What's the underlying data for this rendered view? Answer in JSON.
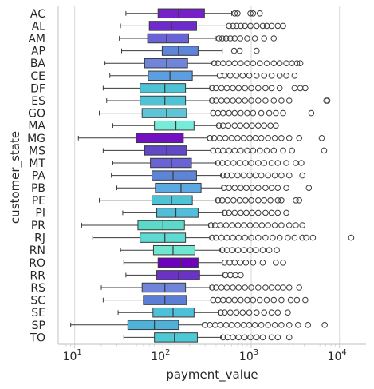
{
  "chart_data": {
    "type": "boxplot",
    "orientation": "horizontal",
    "title": "",
    "xlabel": "payment_value",
    "ylabel": "customer_state",
    "x_scale": "log",
    "xlim": [
      6.5,
      20000
    ],
    "x_ticks": [
      10,
      100,
      1000,
      10000
    ],
    "x_tick_labels": [
      "10^1",
      "10^2",
      "10^3",
      "10^4"
    ],
    "grid": "vertical",
    "categories": [
      "AC",
      "AL",
      "AM",
      "AP",
      "BA",
      "CE",
      "DF",
      "ES",
      "GO",
      "MA",
      "MG",
      "MS",
      "MT",
      "PA",
      "PB",
      "PE",
      "PI",
      "PR",
      "RJ",
      "RN",
      "RO",
      "RR",
      "RS",
      "SC",
      "SE",
      "SP",
      "TO"
    ],
    "boxes": [
      {
        "state": "AC",
        "whisker_low": 38,
        "q1": 88,
        "median": 150,
        "q3": 295,
        "whisker_high": 600,
        "color": "#7521C7",
        "outliers": [
          650,
          700,
          980,
          1050,
          1250
        ]
      },
      {
        "state": "AL",
        "whisker_low": 33,
        "q1": 70,
        "median": 125,
        "q3": 240,
        "whisker_high": 520,
        "color": "#6D2BCB",
        "outliers": [
          560,
          620,
          680,
          760,
          850,
          980,
          1150,
          1350,
          1500,
          1700,
          2000,
          2300
        ]
      },
      {
        "state": "AM",
        "whisker_low": 32,
        "q1": 67,
        "median": 110,
        "q3": 195,
        "whisker_high": 400,
        "color": "#6A63D6",
        "outliers": [
          430,
          470,
          520,
          580,
          650,
          750,
          900,
          1100,
          1400,
          1800
        ]
      },
      {
        "state": "AP",
        "whisker_low": 34,
        "q1": 98,
        "median": 150,
        "q3": 250,
        "whisker_high": 470,
        "color": "#5D85D9",
        "outliers": [
          640,
          740,
          1150
        ]
      },
      {
        "state": "BA",
        "whisker_low": 22,
        "q1": 62,
        "median": 110,
        "q3": 190,
        "whisker_high": 360,
        "color": "#6F85D9",
        "outliers": [
          380,
          420,
          480,
          560,
          650,
          760,
          900,
          1050,
          1250,
          1500,
          1800,
          2100,
          2500,
          2900,
          3300,
          3600
        ]
      },
      {
        "state": "CE",
        "whisker_low": 25,
        "q1": 68,
        "median": 120,
        "q3": 215,
        "whisker_high": 420,
        "color": "#5C9EE0",
        "outliers": [
          440,
          500,
          580,
          680,
          800,
          950,
          1150,
          1400,
          1700,
          2100,
          2500,
          3100
        ]
      },
      {
        "state": "DF",
        "whisker_low": 21,
        "q1": 55,
        "median": 105,
        "q3": 180,
        "whisker_high": 340,
        "color": "#4FC3D6",
        "outliers": [
          360,
          400,
          460,
          530,
          620,
          720,
          850,
          1000,
          1200,
          1450,
          1700,
          2100,
          3100,
          3600,
          4100
        ]
      },
      {
        "state": "ES",
        "whisker_low": 23,
        "q1": 55,
        "median": 105,
        "q3": 180,
        "whisker_high": 340,
        "color": "#4FC3D6",
        "outliers": [
          360,
          400,
          460,
          530,
          620,
          720,
          850,
          1000,
          1200,
          1450,
          1800,
          2200,
          2700,
          7100,
          7300
        ]
      },
      {
        "state": "GO",
        "whisker_low": 19,
        "q1": 58,
        "median": 110,
        "q3": 185,
        "whisker_high": 350,
        "color": "#5CC6D8",
        "outliers": [
          370,
          420,
          480,
          560,
          650,
          760,
          900,
          1050,
          1300,
          1600,
          1900,
          2300,
          4800
        ]
      },
      {
        "state": "MA",
        "whisker_low": 27,
        "q1": 80,
        "median": 140,
        "q3": 225,
        "whisker_high": 420,
        "color": "#77EBD9",
        "outliers": [
          430,
          480,
          550,
          650,
          750,
          880,
          1020,
          1200,
          1400,
          1650,
          1900
        ]
      },
      {
        "state": "MG",
        "whisker_low": 11,
        "q1": 50,
        "median": 100,
        "q3": 170,
        "whisker_high": 320,
        "color": "#7111C1",
        "outliers": [
          340,
          380,
          440,
          510,
          600,
          700,
          820,
          960,
          1120,
          1300,
          1550,
          1850,
          2200,
          2700,
          3500,
          6300
        ]
      },
      {
        "state": "MS",
        "whisker_low": 21,
        "q1": 62,
        "median": 110,
        "q3": 185,
        "whisker_high": 350,
        "color": "#6048C8",
        "outliers": [
          370,
          420,
          480,
          560,
          650,
          760,
          900,
          1050,
          1250,
          1500,
          1800,
          2300,
          2900,
          6700
        ]
      },
      {
        "state": "MT",
        "whisker_low": 27,
        "q1": 72,
        "median": 125,
        "q3": 210,
        "whisker_high": 400,
        "color": "#6A63D6",
        "outliers": [
          420,
          470,
          540,
          630,
          740,
          860,
          1000,
          1200,
          1400,
          1700,
          2000,
          2500,
          3200,
          3700
        ]
      },
      {
        "state": "PA",
        "whisker_low": 26,
        "q1": 75,
        "median": 130,
        "q3": 240,
        "whisker_high": 460,
        "color": "#5C85D8",
        "outliers": [
          480,
          530,
          600,
          700,
          820,
          960,
          1120,
          1300,
          1550,
          1850,
          2200,
          2700,
          3800
        ]
      },
      {
        "state": "PB",
        "whisker_low": 30,
        "q1": 82,
        "median": 160,
        "q3": 270,
        "whisker_high": 470,
        "color": "#5CA8E2",
        "outliers": [
          490,
          560,
          650,
          760,
          880,
          1020,
          1200,
          1450,
          1700,
          2000,
          2500,
          4500
        ]
      },
      {
        "state": "PE",
        "whisker_low": 19,
        "q1": 75,
        "median": 125,
        "q3": 215,
        "whisker_high": 400,
        "color": "#4FC3D6",
        "outliers": [
          420,
          470,
          540,
          630,
          740,
          860,
          1000,
          1200,
          1400,
          1650,
          2000,
          2200,
          3200,
          3500
        ]
      },
      {
        "state": "PI",
        "whisker_low": 35,
        "q1": 85,
        "median": 140,
        "q3": 250,
        "whisker_high": 480,
        "color": "#52BED9",
        "outliers": [
          500,
          560,
          650,
          760,
          880,
          1020,
          1200,
          1450,
          1700,
          2000,
          2500
        ]
      },
      {
        "state": "PR",
        "whisker_low": 12,
        "q1": 52,
        "median": 100,
        "q3": 175,
        "whisker_high": 330,
        "color": "#5ED9C9",
        "outliers": [
          350,
          390,
          450,
          520,
          610,
          710,
          830,
          970,
          1130,
          1320,
          1550,
          1850,
          2200,
          2700,
          3200,
          3800
        ]
      },
      {
        "state": "RJ",
        "whisker_low": 16,
        "q1": 55,
        "median": 105,
        "q3": 180,
        "whisker_high": 340,
        "color": "#5ED9D3",
        "outliers": [
          360,
          400,
          460,
          530,
          620,
          720,
          850,
          1000,
          1200,
          1450,
          1750,
          2100,
          2600,
          3100,
          3800,
          4200,
          5000,
          13600
        ]
      },
      {
        "state": "RN",
        "whisker_low": 33,
        "q1": 78,
        "median": 130,
        "q3": 230,
        "whisker_high": 450,
        "color": "#6FE6CF",
        "outliers": [
          470,
          530,
          610,
          710,
          830,
          970,
          1130,
          1350,
          1600,
          1950
        ]
      },
      {
        "state": "RO",
        "whisker_low": 36,
        "q1": 88,
        "median": 160,
        "q3": 250,
        "whisker_high": 470,
        "color": "#7000C0",
        "outliers": [
          500,
          570,
          650,
          750,
          870,
          1050,
          1350,
          1900,
          2300
        ]
      },
      {
        "state": "RR",
        "whisker_low": 38,
        "q1": 85,
        "median": 150,
        "q3": 260,
        "whisker_high": 480,
        "color": "#6A33C6",
        "outliers": [
          510,
          580,
          660,
          760
        ]
      },
      {
        "state": "RS",
        "whisker_low": 20,
        "q1": 58,
        "median": 105,
        "q3": 180,
        "whisker_high": 340,
        "color": "#6F85D9",
        "outliers": [
          360,
          400,
          460,
          530,
          620,
          720,
          850,
          1000,
          1200,
          1450,
          1700,
          2000,
          2300,
          2700,
          3500
        ]
      },
      {
        "state": "SC",
        "whisker_low": 21,
        "q1": 60,
        "median": 105,
        "q3": 185,
        "whisker_high": 350,
        "color": "#5A7DD6",
        "outliers": [
          370,
          420,
          480,
          560,
          650,
          760,
          900,
          1050,
          1250,
          1500,
          1800,
          2200,
          2800,
          3300,
          4100
        ]
      },
      {
        "state": "SE",
        "whisker_low": 31,
        "q1": 77,
        "median": 130,
        "q3": 225,
        "whisker_high": 430,
        "color": "#4FC0DA",
        "outliers": [
          450,
          500,
          580,
          680,
          800,
          950,
          1150,
          1400,
          1700,
          2000,
          2600
        ]
      },
      {
        "state": "SP",
        "whisker_low": 9,
        "q1": 40,
        "median": 80,
        "q3": 150,
        "whisker_high": 280,
        "color": "#4FB0D8",
        "outliers": [
          300,
          340,
          390,
          450,
          520,
          600,
          700,
          820,
          950,
          1100,
          1300,
          1550,
          1850,
          2200,
          2700,
          3400,
          4400,
          6800
        ]
      },
      {
        "state": "TO",
        "whisker_low": 36,
        "q1": 80,
        "median": 135,
        "q3": 245,
        "whisker_high": 460,
        "color": "#4FC8D6",
        "outliers": [
          480,
          540,
          620,
          720,
          840,
          980,
          1150,
          1350,
          1700,
          2000,
          2700
        ]
      }
    ]
  }
}
